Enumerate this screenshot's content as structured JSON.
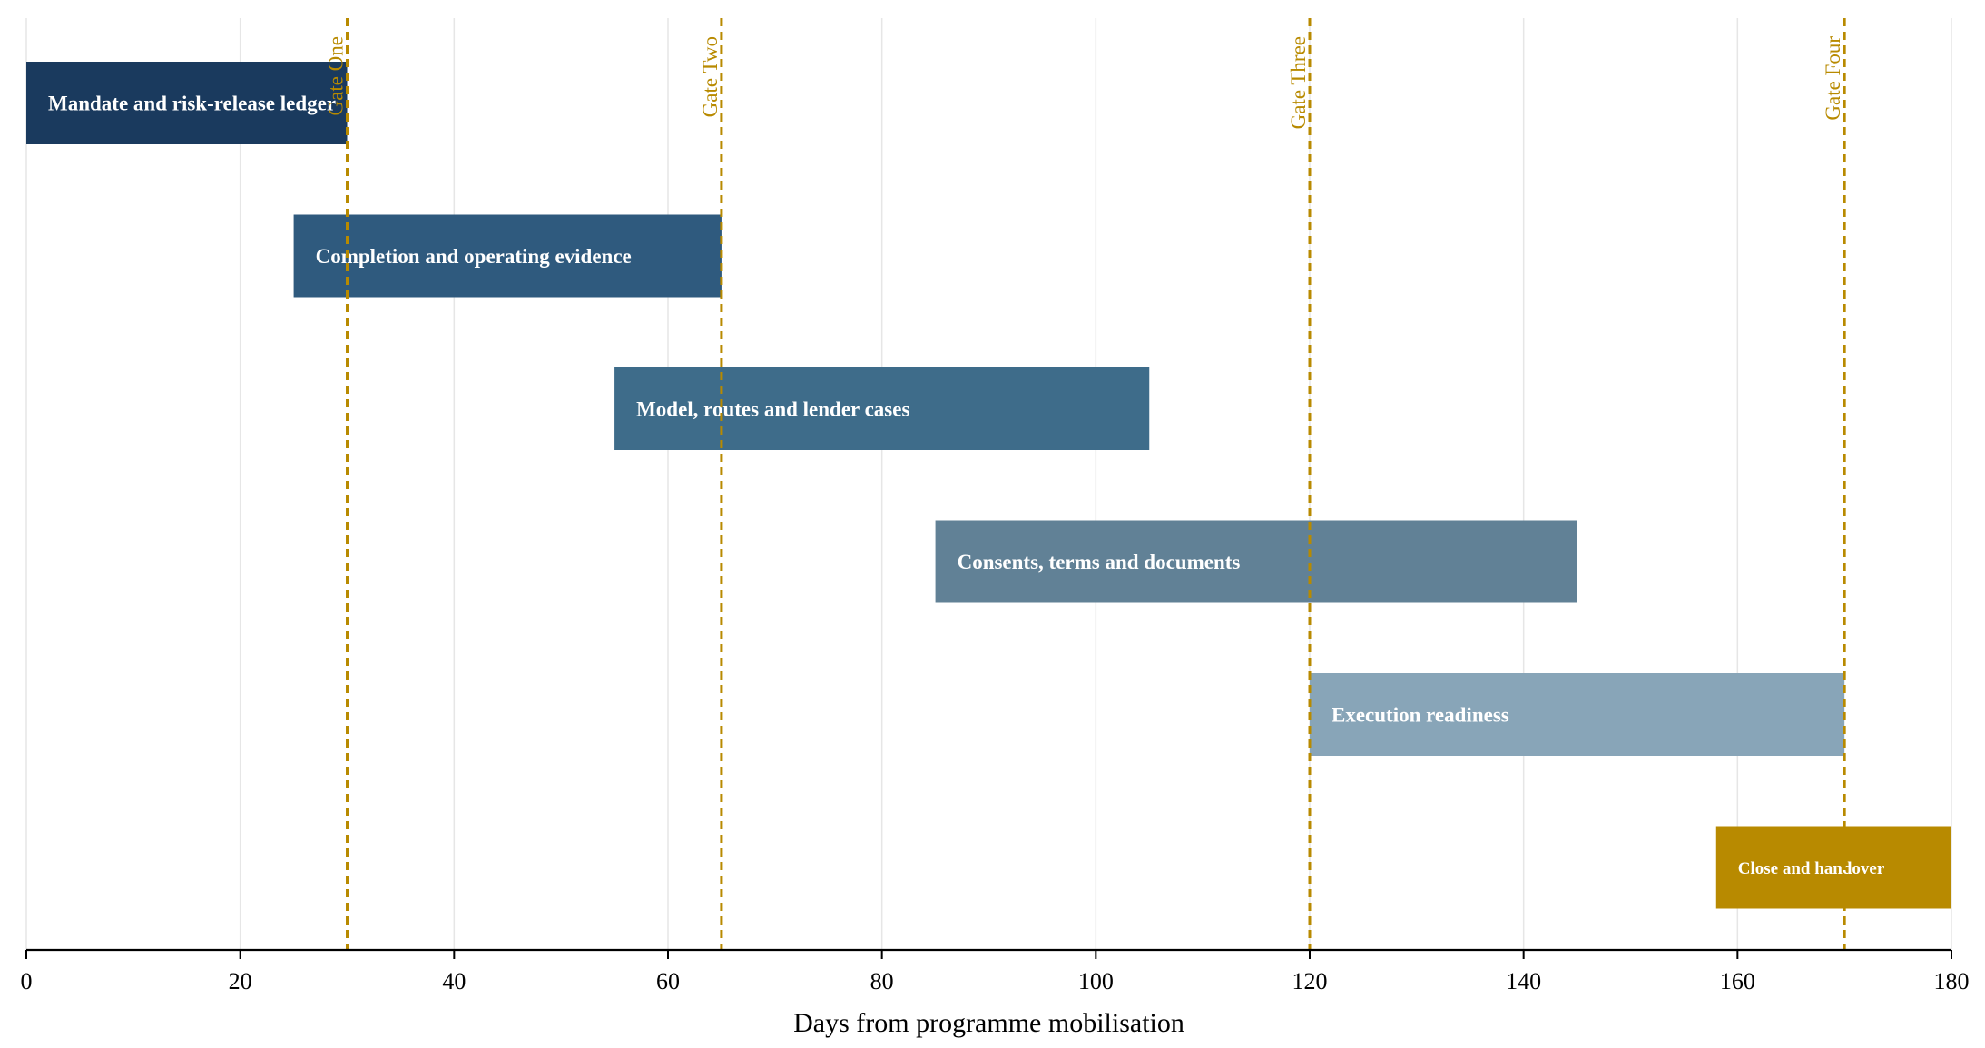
{
  "chart_data": {
    "type": "bar",
    "orientation": "horizontal",
    "subtype": "gantt",
    "title": "",
    "xlabel": "Days from programme mobilisation",
    "ylabel": "",
    "xlim": [
      0,
      180
    ],
    "xticks": [
      0,
      20,
      40,
      60,
      80,
      100,
      120,
      140,
      160,
      180
    ],
    "grid": "vertical",
    "tasks": [
      {
        "label": "Mandate and risk-release ledger",
        "start": 0,
        "end": 30,
        "color": "#1a3a5e"
      },
      {
        "label": "Completion and operating evidence",
        "start": 25,
        "end": 65,
        "color": "#2f5a7e"
      },
      {
        "label": "Model, routes and lender cases",
        "start": 55,
        "end": 105,
        "color": "#3e6c8a"
      },
      {
        "label": "Consents, terms and documents",
        "start": 85,
        "end": 145,
        "color": "#618196"
      },
      {
        "label": "Execution readiness",
        "start": 120,
        "end": 170,
        "color": "#88a5b8"
      },
      {
        "label": "Close and handover",
        "start": 158,
        "end": 180,
        "color": "#b88a00"
      }
    ],
    "gates": [
      {
        "label": "Gate One",
        "day": 30
      },
      {
        "label": "Gate Two",
        "day": 65
      },
      {
        "label": "Gate Three",
        "day": 120
      },
      {
        "label": "Gate Four",
        "day": 170
      }
    ],
    "gate_color": "#b88a00"
  }
}
